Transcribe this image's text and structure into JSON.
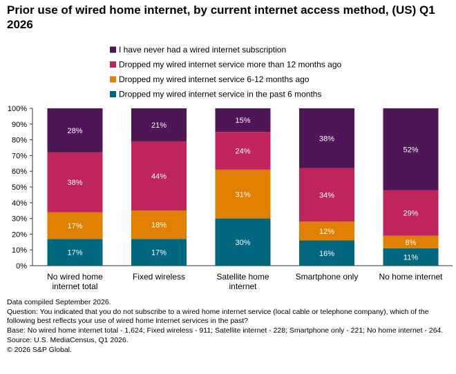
{
  "title": "Prior use of wired home internet, by current internet access method, (US) Q1 2026",
  "chart_data": {
    "type": "bar",
    "stacked": true,
    "percent_stacked": true,
    "categories": [
      "No wired home internet total",
      "Fixed wireless",
      "Satellite home internet",
      "Smartphone only",
      "No home internet"
    ],
    "category_lines": [
      [
        "No wired home",
        "internet total"
      ],
      [
        "Fixed wireless"
      ],
      [
        "Satellite home",
        "internet"
      ],
      [
        "Smartphone only"
      ],
      [
        "No home internet"
      ]
    ],
    "series": [
      {
        "name": "Dropped my wired internet service in the past 6 months",
        "color": "#00677F",
        "values": [
          17,
          17,
          30,
          16,
          11
        ],
        "labels": [
          "17%",
          "17%",
          "30%",
          "16%",
          "11%"
        ]
      },
      {
        "name": "Dropped my wired internet service 6-12 months ago",
        "color": "#E08000",
        "values": [
          17,
          18,
          31,
          12,
          8
        ],
        "labels": [
          "17%",
          "18%",
          "31%",
          "12%",
          "8%"
        ]
      },
      {
        "name": "Dropped my wired internet service more than 12 months ago",
        "color": "#C0245C",
        "values": [
          38,
          44,
          24,
          34,
          29
        ],
        "labels": [
          "38%",
          "44%",
          "24%",
          "34%",
          "29%"
        ]
      },
      {
        "name": "I have never had a wired internet subscription",
        "color": "#4E1557",
        "values": [
          28,
          21,
          15,
          38,
          52
        ],
        "labels": [
          "28%",
          "21%",
          "15%",
          "38%",
          "52%"
        ]
      }
    ],
    "y_ticks": [
      "0%",
      "10%",
      "20%",
      "30%",
      "40%",
      "50%",
      "60%",
      "70%",
      "80%",
      "90%",
      "100%"
    ],
    "ylim": [
      0,
      100
    ],
    "legend_position": "top",
    "grid": false
  },
  "notes": {
    "compiled": "Data compiled September 2026.",
    "question": "Question: You indicated that you do not subscribe to a wired home internet service (local cable or telephone company), which of the following best reflects your use of wired home internet services in the past?",
    "base": "Base: No wired home internet total - 1,624; Fixed wireless - 911; Satellite internet - 228; Smartphone only - 221; No home internet - 264.",
    "source": "Source: U.S. MediaCensus, Q1 2026.",
    "copyright": "© 2026 S&P Global."
  }
}
